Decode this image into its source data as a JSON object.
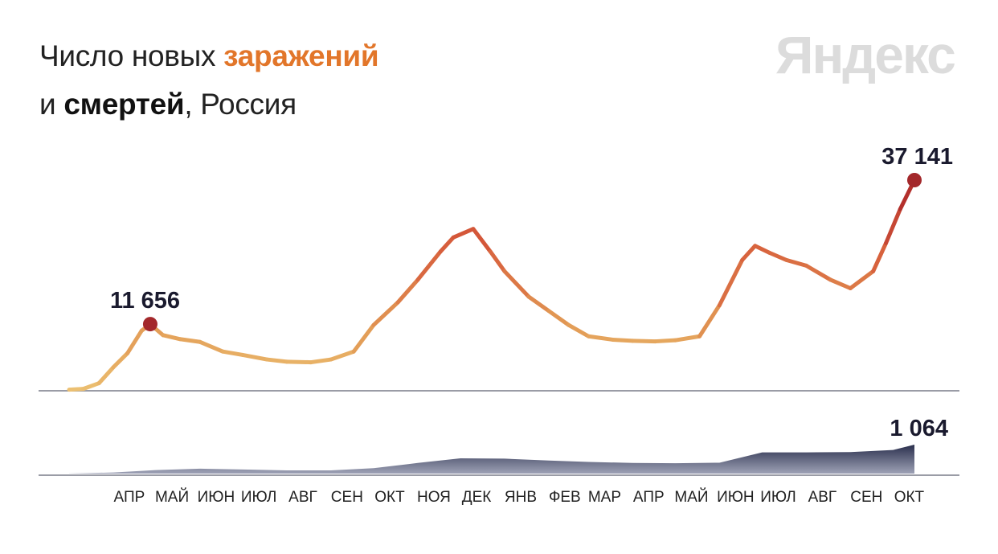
{
  "header": {
    "title_part1": "Число новых ",
    "title_accent": "заражений",
    "title_part2": "и ",
    "title_bold": "смертей",
    "title_part3": ", Россия",
    "logo": "Яндекс"
  },
  "colors": {
    "cases_start": "#ecc172",
    "cases_mid": "#e29a55",
    "cases_high": "#d65a3a",
    "cases_end": "#b3302c",
    "deaths_fill_top": "#2a2f4d",
    "deaths_fill_bottom": "#9ea2b6",
    "peak_dot": "#a3282b",
    "axis": "#9a9ca6"
  },
  "chart_data": [
    {
      "type": "line",
      "series": [
        {
          "values_description": "",
          "x": [
            "2020-03-15",
            "2020-03-25",
            "2020-04-05",
            "2020-04-15",
            "2020-04-25",
            "2020-05-05",
            "2020-05-11",
            "2020-05-20",
            "2020-06-01",
            "2020-06-15",
            "2020-07-01",
            "2020-07-15",
            "2020-08-01",
            "2020-08-15",
            "2020-09-01",
            "2020-09-15",
            "2020-10-01",
            "2020-10-15",
            "2020-11-01",
            "2020-11-15",
            "2020-12-01",
            "2020-12-10",
            "2020-12-24",
            "2021-01-05",
            "2021-01-15",
            "2021-02-01",
            "2021-02-15",
            "2021-03-01",
            "2021-03-15",
            "2021-04-01",
            "2021-04-15",
            "2021-05-01",
            "2021-05-15",
            "2021-06-01",
            "2021-06-15",
            "2021-07-01",
            "2021-07-10",
            "2021-07-20",
            "2021-08-01",
            "2021-08-15",
            "2021-09-01",
            "2021-09-15",
            "2021-10-01",
            "2021-10-10",
            "2021-10-20",
            "2021-10-30"
          ],
          "values": [
            50,
            200,
            1200,
            4000,
            6500,
            10500,
            11656,
            9700,
            9000,
            8500,
            6800,
            6200,
            5400,
            5000,
            4900,
            5400,
            6800,
            11500,
            15500,
            19500,
            24500,
            27000,
            28500,
            24500,
            21000,
            16500,
            14000,
            11500,
            9500,
            8900,
            8700,
            8600,
            8800,
            9500,
            15000,
            23000,
            25500,
            24300,
            23000,
            22000,
            19500,
            18000,
            21000,
            26000,
            32000,
            37141
          ]
        }
      ],
      "annotations": [
        {
          "label": "11 656",
          "x": "2020-05-11",
          "y": 11656
        },
        {
          "label": "37 141",
          "x": "2021-10-30",
          "y": 37141
        }
      ],
      "ylim": [
        0,
        37141
      ],
      "grid": false
    },
    {
      "type": "area",
      "series": [
        {
          "x": [
            "2020-03-15",
            "2020-04-15",
            "2020-05-15",
            "2020-06-15",
            "2020-07-15",
            "2020-08-15",
            "2020-09-15",
            "2020-10-15",
            "2020-11-15",
            "2020-12-15",
            "2021-01-15",
            "2021-02-15",
            "2021-03-15",
            "2021-04-15",
            "2021-05-15",
            "2021-06-15",
            "2021-07-15",
            "2021-08-15",
            "2021-09-15",
            "2021-10-15",
            "2021-10-30"
          ],
          "values": [
            5,
            40,
            130,
            180,
            150,
            120,
            120,
            200,
            390,
            560,
            550,
            480,
            430,
            390,
            380,
            400,
            780,
            780,
            790,
            870,
            1064
          ]
        }
      ],
      "annotations": [
        {
          "label": "1 064",
          "x": "2021-10-30",
          "y": 1064
        }
      ],
      "ylim": [
        0,
        1064
      ]
    }
  ],
  "x_axis": {
    "start": "2020-03-15",
    "end": "2021-10-30",
    "ticks": [
      {
        "label": "АПР",
        "date": "2020-04-15"
      },
      {
        "label": "МАЙ",
        "date": "2020-05-15"
      },
      {
        "label": "ИЮН",
        "date": "2020-06-15"
      },
      {
        "label": "ИЮЛ",
        "date": "2020-07-15"
      },
      {
        "label": "АВГ",
        "date": "2020-08-15"
      },
      {
        "label": "СЕН",
        "date": "2020-09-15"
      },
      {
        "label": "ОКТ",
        "date": "2020-10-15"
      },
      {
        "label": "НОЯ",
        "date": "2020-11-15"
      },
      {
        "label": "ДЕК",
        "date": "2020-12-15"
      },
      {
        "label": "ЯНВ",
        "date": "2021-01-15"
      },
      {
        "label": "ФЕВ",
        "date": "2021-02-15"
      },
      {
        "label": "МАР",
        "date": "2021-03-15"
      },
      {
        "label": "АПР",
        "date": "2021-04-15"
      },
      {
        "label": "МАЙ",
        "date": "2021-05-15"
      },
      {
        "label": "ИЮН",
        "date": "2021-06-15"
      },
      {
        "label": "ИЮЛ",
        "date": "2021-07-15"
      },
      {
        "label": "АВГ",
        "date": "2021-08-15"
      },
      {
        "label": "СЕН",
        "date": "2021-09-15"
      },
      {
        "label": "ОКТ",
        "date": "2021-10-15"
      }
    ]
  }
}
